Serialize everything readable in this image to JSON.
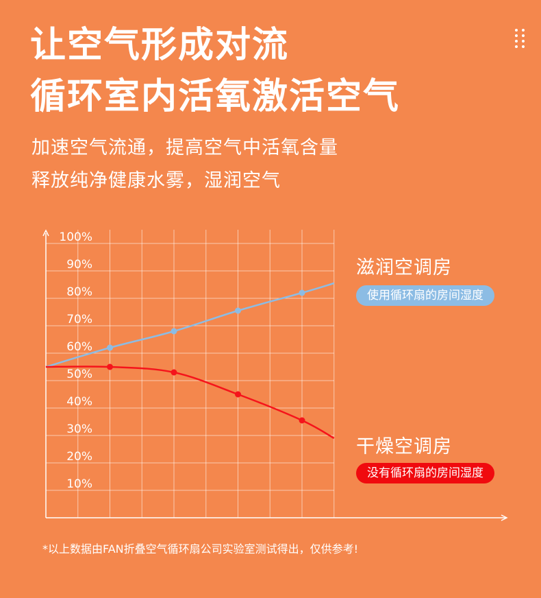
{
  "header": {
    "title_line1": "让空气形成对流",
    "title_line2": "循环室内活氧激活空气",
    "subtitle_line1": "加速空气流通，提高空气中活氧含量",
    "subtitle_line2": "释放纯净健康水雾，湿润空气"
  },
  "menu": {
    "icon": "dots-menu-icon"
  },
  "chart_data": {
    "type": "line",
    "x": [
      0,
      1,
      2,
      3,
      4,
      4.5
    ],
    "yticks": [
      "10%",
      "20%",
      "30%",
      "40%",
      "50%",
      "60%",
      "70%",
      "80%",
      "90%",
      "100%"
    ],
    "ylim": [
      0,
      105
    ],
    "grid": true,
    "series": [
      {
        "name": "滋润空调房",
        "badge": "使用循环扇的房间湿度",
        "color": "#8CBCE4",
        "values": [
          55,
          62,
          68,
          75.5,
          82,
          85.5
        ],
        "markers": [
          1,
          2,
          3,
          4
        ]
      },
      {
        "name": "干燥空调房",
        "badge": "没有循环扇的房间湿度",
        "color": "#F5141B",
        "values": [
          55,
          55,
          53,
          45,
          35.5,
          29
        ],
        "markers": [
          1,
          2,
          3,
          4
        ]
      }
    ]
  },
  "footnote": "*以上数据由FAN折叠空气循环扇公司实验室测试得出，仅供参考!"
}
